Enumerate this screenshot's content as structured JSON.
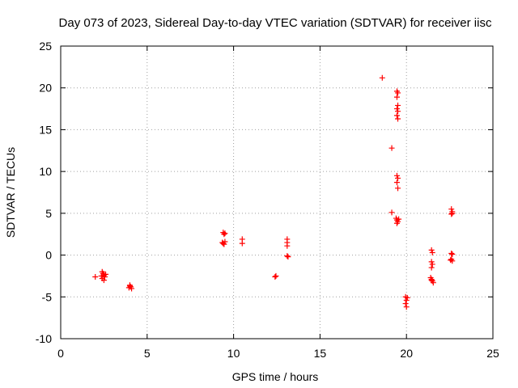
{
  "chart_data": {
    "type": "scatter",
    "title": "Day 073 of 2023, Sidereal Day-to-day VTEC variation (SDTVAR) for receiver iisc",
    "xlabel": "GPS time / hours",
    "ylabel": "SDTVAR / TECUs",
    "xlim": [
      0,
      25
    ],
    "ylim": [
      -10,
      25
    ],
    "xticks": [
      0,
      5,
      10,
      15,
      20,
      25
    ],
    "yticks": [
      -10,
      -5,
      0,
      5,
      10,
      15,
      20,
      25
    ],
    "grid": true,
    "marker": "plus",
    "color": "#ff0000",
    "series": [
      {
        "name": "SDTVAR",
        "points": [
          [
            2.0,
            -2.6
          ],
          [
            2.4,
            -2.0
          ],
          [
            2.45,
            -2.2
          ],
          [
            2.5,
            -2.4
          ],
          [
            2.55,
            -2.6
          ],
          [
            2.4,
            -2.8
          ],
          [
            2.5,
            -3.0
          ],
          [
            2.6,
            -2.3
          ],
          [
            2.35,
            -2.5
          ],
          [
            4.0,
            -3.6
          ],
          [
            4.05,
            -3.8
          ],
          [
            4.1,
            -4.0
          ],
          [
            3.95,
            -3.9
          ],
          [
            4.0,
            -3.7
          ],
          [
            9.4,
            2.7
          ],
          [
            9.45,
            2.5
          ],
          [
            9.5,
            2.6
          ],
          [
            9.35,
            1.5
          ],
          [
            9.45,
            1.3
          ],
          [
            9.5,
            1.6
          ],
          [
            9.4,
            1.4
          ],
          [
            10.5,
            1.9
          ],
          [
            10.5,
            1.4
          ],
          [
            12.4,
            -2.6
          ],
          [
            12.45,
            -2.5
          ],
          [
            13.1,
            1.9
          ],
          [
            13.1,
            1.5
          ],
          [
            13.1,
            1.1
          ],
          [
            13.1,
            -0.1
          ],
          [
            13.15,
            -0.2
          ],
          [
            18.6,
            21.2
          ],
          [
            19.15,
            12.8
          ],
          [
            19.15,
            5.1
          ],
          [
            19.45,
            19.6
          ],
          [
            19.5,
            19.4
          ],
          [
            19.45,
            18.9
          ],
          [
            19.5,
            17.9
          ],
          [
            19.45,
            17.5
          ],
          [
            19.5,
            17.2
          ],
          [
            19.45,
            16.7
          ],
          [
            19.5,
            16.3
          ],
          [
            19.45,
            9.5
          ],
          [
            19.5,
            9.2
          ],
          [
            19.45,
            8.7
          ],
          [
            19.5,
            8.0
          ],
          [
            19.4,
            4.4
          ],
          [
            19.45,
            4.2
          ],
          [
            19.5,
            4.0
          ],
          [
            19.45,
            3.8
          ],
          [
            19.55,
            4.3
          ],
          [
            19.95,
            -5.0
          ],
          [
            20.0,
            -5.4
          ],
          [
            19.95,
            -5.8
          ],
          [
            20.0,
            -6.2
          ],
          [
            20.05,
            -5.1
          ],
          [
            21.45,
            0.6
          ],
          [
            21.5,
            0.3
          ],
          [
            21.45,
            -0.8
          ],
          [
            21.5,
            -1.1
          ],
          [
            21.45,
            -1.5
          ],
          [
            21.4,
            -2.7
          ],
          [
            21.45,
            -2.9
          ],
          [
            21.5,
            -3.1
          ],
          [
            21.55,
            -3.3
          ],
          [
            21.45,
            -3.0
          ],
          [
            22.6,
            5.5
          ],
          [
            22.65,
            5.2
          ],
          [
            22.6,
            4.9
          ],
          [
            22.65,
            5.0
          ],
          [
            22.6,
            0.2
          ],
          [
            22.65,
            0.1
          ],
          [
            22.6,
            -0.5
          ],
          [
            22.65,
            -0.7
          ],
          [
            22.55,
            -0.6
          ]
        ]
      }
    ]
  }
}
